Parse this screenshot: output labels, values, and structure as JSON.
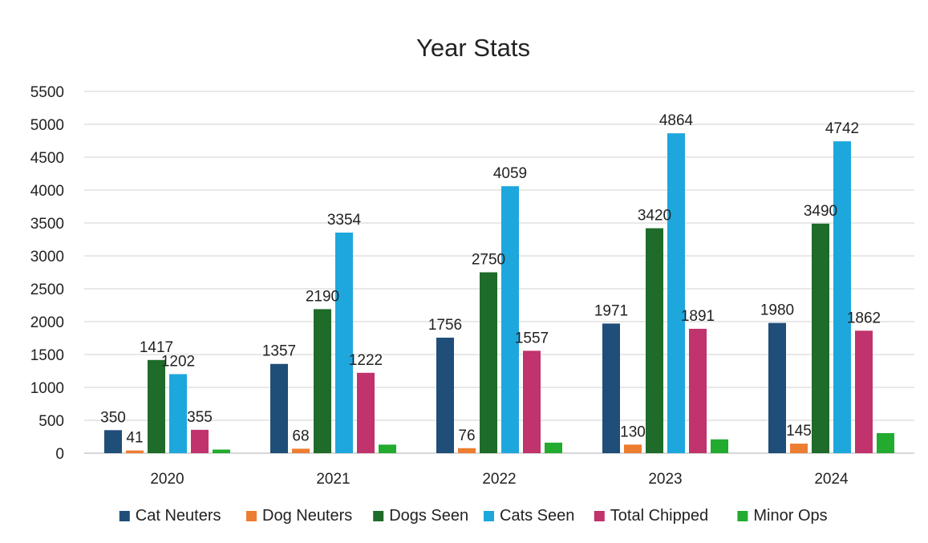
{
  "chart_data": {
    "type": "bar",
    "title": "Year Stats",
    "xlabel": "",
    "ylabel": "",
    "categories": [
      "2020",
      "2021",
      "2022",
      "2023",
      "2024"
    ],
    "ylim": [
      0,
      5500
    ],
    "yticks": [
      0,
      500,
      1000,
      1500,
      2000,
      2500,
      3000,
      3500,
      4000,
      4500,
      5000,
      5500
    ],
    "grid": true,
    "legend_position": "bottom",
    "series": [
      {
        "name": "Cat Neuters",
        "color": "#1f4e79",
        "values": [
          350,
          1357,
          1756,
          1971,
          1980
        ],
        "labels": true
      },
      {
        "name": "Dog Neuters",
        "color": "#ed7d31",
        "values": [
          41,
          68,
          76,
          130,
          145
        ],
        "labels": true
      },
      {
        "name": "Dogs Seen",
        "color": "#1e6b2a",
        "values": [
          1417,
          2190,
          2750,
          3420,
          3490
        ],
        "labels": true
      },
      {
        "name": "Cats Seen",
        "color": "#1ea7dc",
        "values": [
          1202,
          3354,
          4059,
          4864,
          4742
        ],
        "labels": true
      },
      {
        "name": "Total Chipped",
        "color": "#c0336c",
        "values": [
          355,
          1222,
          1557,
          1891,
          1862
        ],
        "labels": true
      },
      {
        "name": "Minor Ops",
        "color": "#22ab2f",
        "values": [
          55,
          130,
          160,
          210,
          305
        ],
        "labels": false
      }
    ]
  }
}
